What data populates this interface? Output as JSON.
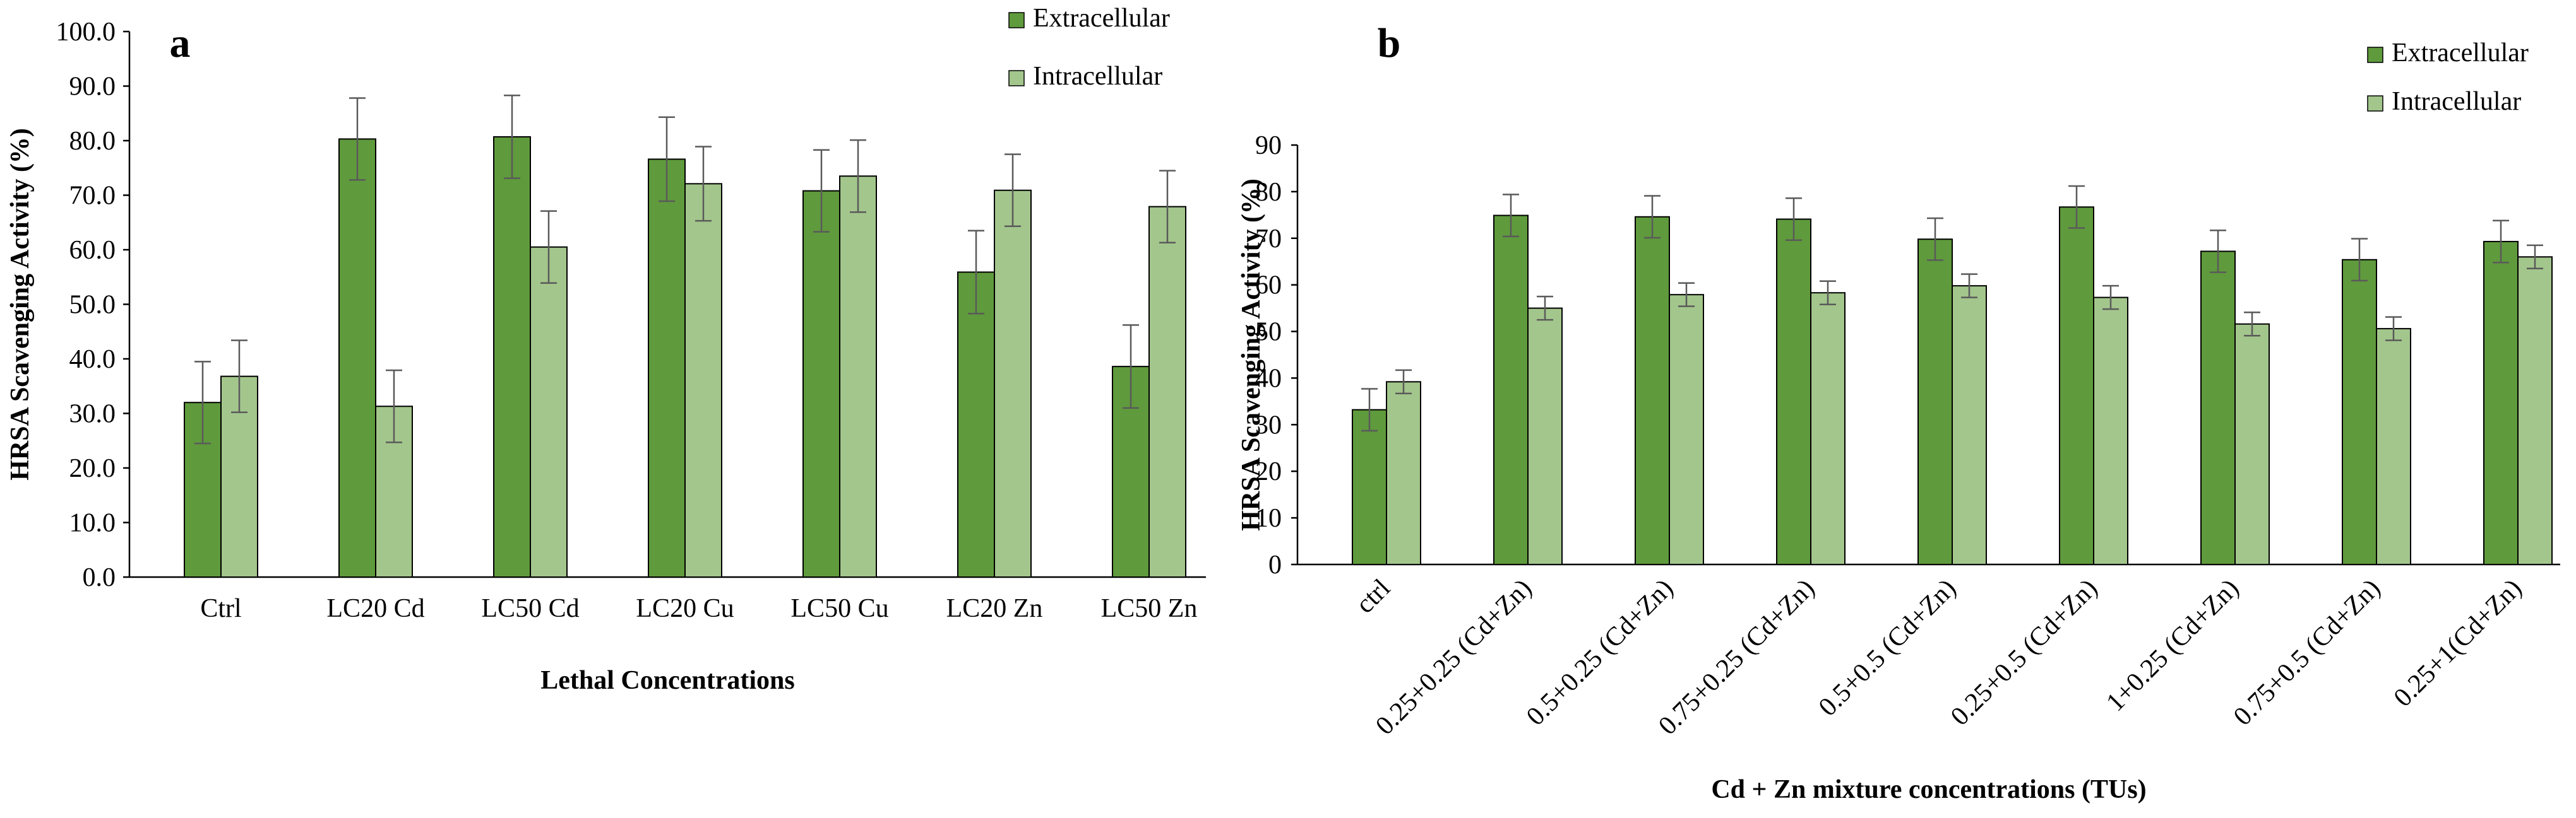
{
  "colors": {
    "extracellular": "#5f9a3c",
    "intracellular": "#a3c68c",
    "bar_edge": "#000000"
  },
  "chart_data": [
    {
      "type": "bar",
      "panel_label": "a",
      "title": "",
      "xlabel": "Lethal Concentrations",
      "ylabel": "HRSA Scavenging Activity (%)",
      "ylim": [
        0,
        100
      ],
      "ytick_step": 10,
      "ytick_labels": [
        "0.0",
        "10.0",
        "20.0",
        "30.0",
        "40.0",
        "50.0",
        "60.0",
        "70.0",
        "80.0",
        "90.0",
        "100.0"
      ],
      "grid": false,
      "legend_position": "top-right",
      "categories": [
        "Ctrl",
        "LC20 Cd",
        "LC50 Cd",
        "LC20 Cu",
        "LC50 Cu",
        "LC20 Zn",
        "LC50 Zn"
      ],
      "series": [
        {
          "name": "Extracellular",
          "values": [
            32.0,
            80.3,
            80.7,
            76.6,
            70.8,
            55.9,
            38.6
          ],
          "errors": [
            7.5,
            7.5,
            7.6,
            7.7,
            7.5,
            7.6,
            7.6
          ]
        },
        {
          "name": "Intracellular",
          "values": [
            36.8,
            31.3,
            60.5,
            72.1,
            73.5,
            70.9,
            67.9
          ],
          "errors": [
            6.6,
            6.6,
            6.6,
            6.8,
            6.6,
            6.6,
            6.6
          ]
        }
      ]
    },
    {
      "type": "bar",
      "panel_label": "b",
      "title": "",
      "xlabel": "Cd + Zn mixture concentrations (TUs)",
      "ylabel": "HRSA Scavenging Activity (%)",
      "ylim": [
        0,
        90
      ],
      "ytick_step": 10,
      "ytick_labels": [
        "0",
        "10",
        "20",
        "30",
        "40",
        "50",
        "60",
        "70",
        "80",
        "90"
      ],
      "grid": false,
      "legend_position": "top-right",
      "categories": [
        "ctrl",
        "0.25+0.25 (Cd+Zn)",
        "0.5+0.25 (Cd+Zn)",
        "0.75+0.25 (Cd+Zn)",
        "0.5+0.5 (Cd+Zn)",
        "0.25+0.5 (Cd+Zn)",
        "1+0.25 (Cd+Zn)",
        "0.75+0.5 (Cd+Zn)",
        "0.25+1(Cd+Zn)"
      ],
      "series": [
        {
          "name": "Extracellular",
          "values": [
            33.2,
            74.9,
            74.6,
            74.1,
            69.8,
            76.7,
            67.2,
            65.4,
            69.3
          ],
          "errors": [
            4.5,
            4.5,
            4.5,
            4.5,
            4.5,
            4.5,
            4.5,
            4.5,
            4.5
          ]
        },
        {
          "name": "Intracellular",
          "values": [
            39.2,
            55.0,
            57.9,
            58.3,
            59.8,
            57.3,
            51.6,
            50.6,
            66.0
          ],
          "errors": [
            2.5,
            2.5,
            2.5,
            2.5,
            2.5,
            2.5,
            2.5,
            2.5,
            2.5
          ]
        }
      ]
    }
  ]
}
